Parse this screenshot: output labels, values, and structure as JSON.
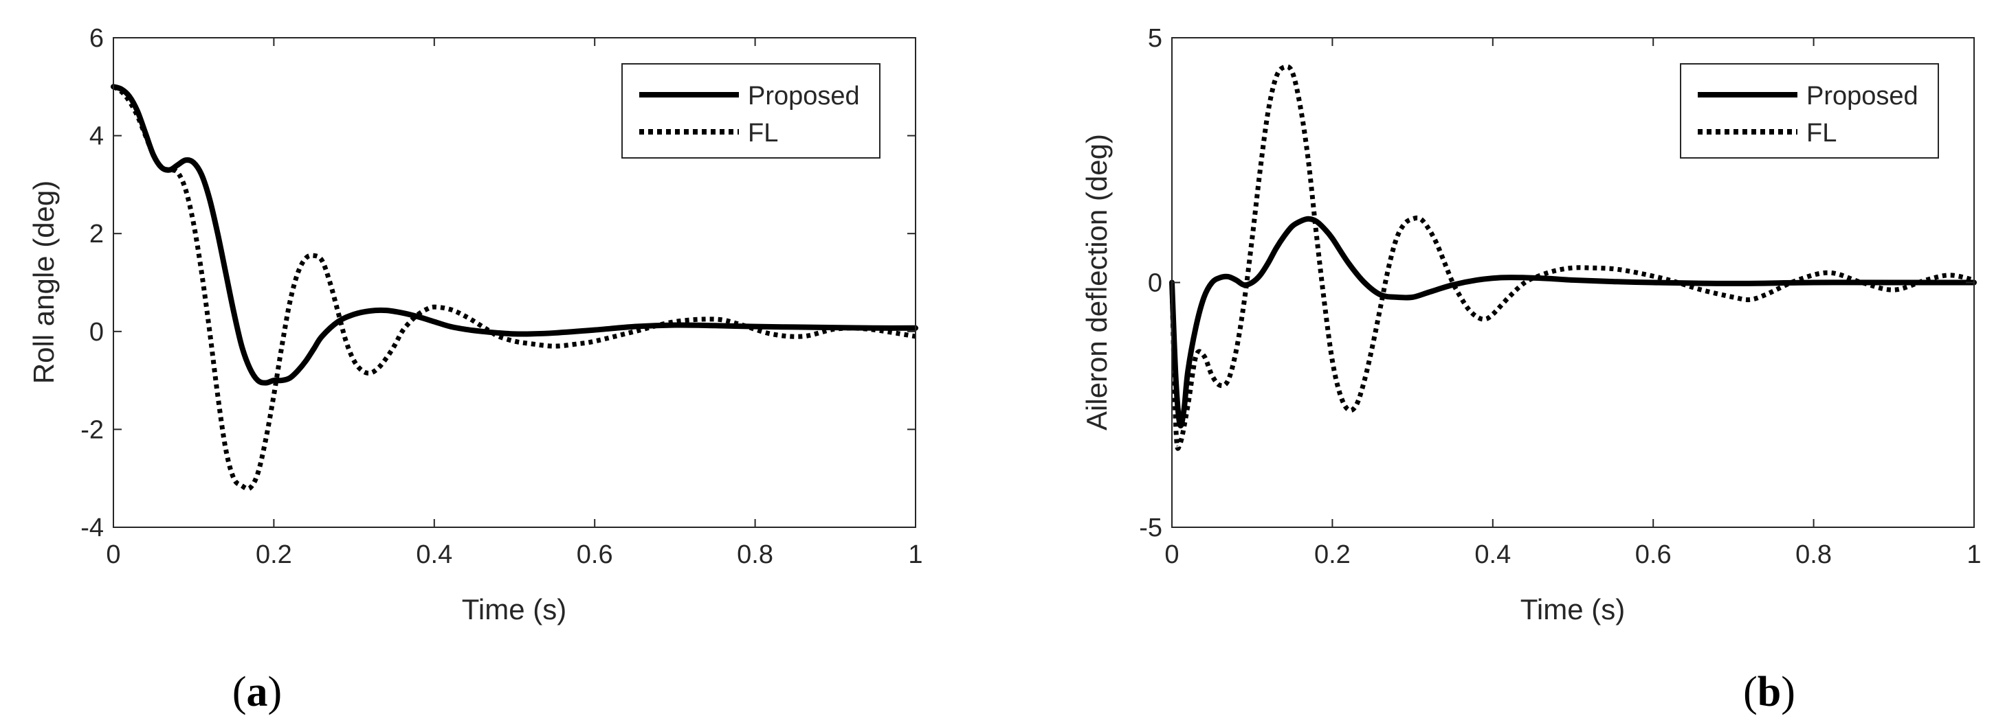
{
  "chart_data": [
    {
      "type": "line",
      "panel_label": "a",
      "xlabel": "Time (s)",
      "ylabel": "Roll angle (deg)",
      "xlim": [
        0,
        1
      ],
      "ylim": [
        -4,
        6
      ],
      "xticks": [
        0,
        0.2,
        0.4,
        0.6,
        0.8,
        1
      ],
      "xtick_labels": [
        "0",
        "0.2",
        "0.4",
        "0.6",
        "0.8",
        "1"
      ],
      "yticks": [
        -4,
        -2,
        0,
        2,
        4,
        6
      ],
      "ytick_labels": [
        "-4",
        "-2",
        "0",
        "2",
        "4",
        "6"
      ],
      "grid": false,
      "legend_position": "top-right",
      "series": [
        {
          "name": "Proposed",
          "style": "solid",
          "x": [
            0,
            0.01,
            0.02,
            0.03,
            0.04,
            0.05,
            0.06,
            0.07,
            0.08,
            0.09,
            0.1,
            0.11,
            0.12,
            0.13,
            0.14,
            0.15,
            0.16,
            0.17,
            0.18,
            0.19,
            0.2,
            0.21,
            0.22,
            0.23,
            0.24,
            0.25,
            0.26,
            0.28,
            0.3,
            0.32,
            0.34,
            0.36,
            0.38,
            0.4,
            0.42,
            0.44,
            0.46,
            0.48,
            0.5,
            0.52,
            0.55,
            0.6,
            0.65,
            0.7,
            0.75,
            0.8,
            0.85,
            0.9,
            0.95,
            1.0
          ],
          "y": [
            5.0,
            4.95,
            4.8,
            4.5,
            4.05,
            3.6,
            3.35,
            3.3,
            3.4,
            3.5,
            3.45,
            3.2,
            2.7,
            2.0,
            1.2,
            0.4,
            -0.3,
            -0.75,
            -1.0,
            -1.05,
            -1.0,
            -1.0,
            -0.95,
            -0.8,
            -0.6,
            -0.35,
            -0.1,
            0.2,
            0.35,
            0.42,
            0.43,
            0.38,
            0.3,
            0.2,
            0.1,
            0.04,
            0.0,
            -0.03,
            -0.05,
            -0.05,
            -0.03,
            0.03,
            0.1,
            0.13,
            0.12,
            0.1,
            0.09,
            0.08,
            0.07,
            0.07
          ]
        },
        {
          "name": "FL",
          "style": "dotted",
          "x": [
            0,
            0.01,
            0.02,
            0.03,
            0.04,
            0.05,
            0.06,
            0.07,
            0.08,
            0.09,
            0.1,
            0.11,
            0.12,
            0.13,
            0.14,
            0.15,
            0.16,
            0.17,
            0.18,
            0.19,
            0.2,
            0.21,
            0.22,
            0.23,
            0.24,
            0.25,
            0.26,
            0.27,
            0.28,
            0.29,
            0.3,
            0.31,
            0.32,
            0.33,
            0.34,
            0.35,
            0.36,
            0.37,
            0.38,
            0.39,
            0.4,
            0.42,
            0.44,
            0.46,
            0.47,
            0.48,
            0.5,
            0.52,
            0.55,
            0.58,
            0.6,
            0.65,
            0.7,
            0.75,
            0.78,
            0.82,
            0.86,
            0.9,
            0.94,
            1.0
          ],
          "y": [
            5.0,
            4.9,
            4.7,
            4.4,
            4.0,
            3.6,
            3.35,
            3.3,
            3.25,
            2.9,
            2.2,
            1.2,
            0.0,
            -1.3,
            -2.4,
            -3.0,
            -3.15,
            -3.2,
            -2.9,
            -2.2,
            -1.3,
            -0.3,
            0.6,
            1.2,
            1.5,
            1.55,
            1.45,
            1.0,
            0.4,
            -0.2,
            -0.6,
            -0.8,
            -0.85,
            -0.75,
            -0.55,
            -0.3,
            0.0,
            0.2,
            0.35,
            0.45,
            0.5,
            0.45,
            0.3,
            0.1,
            0.0,
            -0.1,
            -0.2,
            -0.25,
            -0.3,
            -0.25,
            -0.2,
            0.0,
            0.2,
            0.25,
            0.15,
            -0.05,
            -0.1,
            0.05,
            0.05,
            -0.1
          ]
        }
      ]
    },
    {
      "type": "line",
      "panel_label": "b",
      "xlabel": "Time (s)",
      "ylabel": "Aileron deflection (deg)",
      "xlim": [
        0,
        1
      ],
      "ylim": [
        -5,
        5
      ],
      "xticks": [
        0,
        0.2,
        0.4,
        0.6,
        0.8,
        1
      ],
      "xtick_labels": [
        "0",
        "0.2",
        "0.4",
        "0.6",
        "0.8",
        "1"
      ],
      "yticks": [
        -5,
        0,
        5
      ],
      "ytick_labels": [
        "-5",
        "0",
        "5"
      ],
      "grid": false,
      "legend_position": "top-right",
      "series": [
        {
          "name": "Proposed",
          "style": "solid",
          "x": [
            0,
            0.005,
            0.01,
            0.015,
            0.02,
            0.03,
            0.04,
            0.05,
            0.06,
            0.07,
            0.08,
            0.09,
            0.1,
            0.11,
            0.12,
            0.13,
            0.14,
            0.15,
            0.16,
            0.17,
            0.18,
            0.19,
            0.2,
            0.22,
            0.24,
            0.26,
            0.28,
            0.3,
            0.32,
            0.35,
            0.38,
            0.41,
            0.44,
            0.47,
            0.5,
            0.55,
            0.6,
            0.7,
            0.8,
            0.9,
            1.0
          ],
          "y": [
            0.0,
            -2.0,
            -2.9,
            -2.6,
            -1.8,
            -0.9,
            -0.3,
            0.0,
            0.1,
            0.12,
            0.05,
            -0.05,
            0.0,
            0.15,
            0.4,
            0.7,
            0.95,
            1.15,
            1.25,
            1.3,
            1.25,
            1.1,
            0.9,
            0.4,
            0.0,
            -0.25,
            -0.3,
            -0.3,
            -0.2,
            -0.05,
            0.05,
            0.1,
            0.1,
            0.08,
            0.05,
            0.02,
            0.0,
            -0.02,
            0.0,
            0.0,
            0.0
          ]
        },
        {
          "name": "FL",
          "style": "dotted",
          "x": [
            0,
            0.005,
            0.01,
            0.02,
            0.03,
            0.04,
            0.05,
            0.06,
            0.07,
            0.08,
            0.09,
            0.1,
            0.11,
            0.12,
            0.13,
            0.14,
            0.15,
            0.16,
            0.17,
            0.18,
            0.19,
            0.2,
            0.21,
            0.22,
            0.23,
            0.24,
            0.25,
            0.26,
            0.27,
            0.28,
            0.29,
            0.3,
            0.31,
            0.32,
            0.33,
            0.34,
            0.35,
            0.36,
            0.37,
            0.38,
            0.39,
            0.4,
            0.42,
            0.44,
            0.46,
            0.48,
            0.5,
            0.52,
            0.55,
            0.58,
            0.62,
            0.66,
            0.7,
            0.72,
            0.74,
            0.78,
            0.82,
            0.86,
            0.9,
            0.94,
            0.97,
            1.0
          ],
          "y": [
            0.0,
            -3.0,
            -3.3,
            -2.5,
            -1.5,
            -1.5,
            -1.9,
            -2.1,
            -2.0,
            -1.4,
            -0.4,
            0.9,
            2.3,
            3.5,
            4.2,
            4.4,
            4.3,
            3.6,
            2.5,
            1.0,
            -0.4,
            -1.6,
            -2.3,
            -2.6,
            -2.5,
            -2.0,
            -1.3,
            -0.5,
            0.3,
            0.9,
            1.2,
            1.3,
            1.3,
            1.1,
            0.8,
            0.4,
            0.0,
            -0.3,
            -0.55,
            -0.7,
            -0.75,
            -0.65,
            -0.3,
            0.0,
            0.15,
            0.25,
            0.3,
            0.3,
            0.28,
            0.2,
            0.05,
            -0.15,
            -0.3,
            -0.35,
            -0.25,
            0.05,
            0.2,
            0.0,
            -0.15,
            0.05,
            0.15,
            0.05
          ]
        }
      ]
    }
  ]
}
